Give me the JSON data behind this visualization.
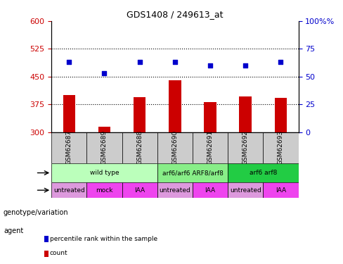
{
  "title": "GDS1408 / 249613_at",
  "samples": [
    "GSM62687",
    "GSM62689",
    "GSM62688",
    "GSM62690",
    "GSM62691",
    "GSM62692",
    "GSM62693"
  ],
  "bar_values": [
    400,
    315,
    395,
    440,
    382,
    397,
    393
  ],
  "bar_baseline": 300,
  "percentile_values": [
    63,
    53,
    63,
    63,
    60,
    60,
    63
  ],
  "ylim_left": [
    300,
    600
  ],
  "ylim_right": [
    0,
    100
  ],
  "yticks_left": [
    300,
    375,
    450,
    525,
    600
  ],
  "yticks_right": [
    0,
    25,
    50,
    75,
    100
  ],
  "bar_color": "#cc0000",
  "dot_color": "#0000cc",
  "genotype_groups": [
    {
      "label": "wild type",
      "span": [
        0,
        3
      ],
      "color": "#bbffbb"
    },
    {
      "label": "arf6/arf6 ARF8/arf8",
      "span": [
        3,
        5
      ],
      "color": "#88ee88"
    },
    {
      "label": "arf6 arf8",
      "span": [
        5,
        7
      ],
      "color": "#22cc44"
    }
  ],
  "agent_groups": [
    {
      "label": "untreated",
      "span": [
        0,
        1
      ],
      "color": "#dd99dd"
    },
    {
      "label": "mock",
      "span": [
        1,
        2
      ],
      "color": "#ee44ee"
    },
    {
      "label": "IAA",
      "span": [
        2,
        3
      ],
      "color": "#ee44ee"
    },
    {
      "label": "untreated",
      "span": [
        3,
        4
      ],
      "color": "#dd99dd"
    },
    {
      "label": "IAA",
      "span": [
        4,
        5
      ],
      "color": "#ee44ee"
    },
    {
      "label": "untreated",
      "span": [
        5,
        6
      ],
      "color": "#dd99dd"
    },
    {
      "label": "IAA",
      "span": [
        6,
        7
      ],
      "color": "#ee44ee"
    }
  ],
  "left_tick_color": "#cc0000",
  "right_tick_color": "#0000cc",
  "gridline_y": [
    375,
    450,
    525
  ],
  "legend_items": [
    {
      "label": "count",
      "color": "#cc0000"
    },
    {
      "label": "percentile rank within the sample",
      "color": "#0000cc"
    }
  ]
}
